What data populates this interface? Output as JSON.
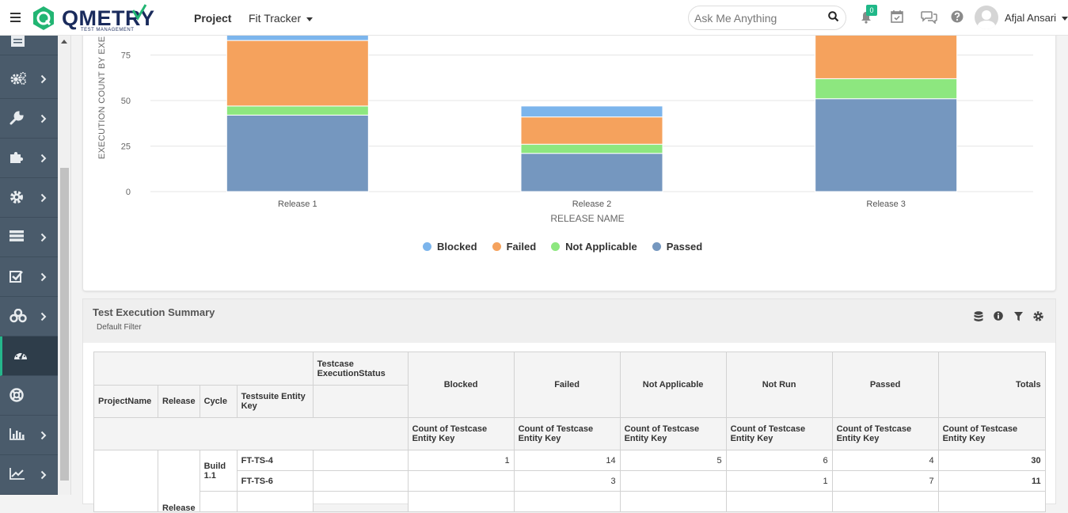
{
  "header": {
    "logo_text": "QMETRY",
    "logo_sub": "TEST MANAGEMENT",
    "nav_project": "Project",
    "nav_tracker": "Fit Tracker",
    "search_placeholder": "Ask Me Anything",
    "notification_count": "0",
    "user_name": "Afjal Ansari"
  },
  "sidebar": {
    "items": [
      {
        "icon": "list-icon"
      },
      {
        "icon": "gears-icon"
      },
      {
        "icon": "wrench-icon"
      },
      {
        "icon": "puzzle-icon"
      },
      {
        "icon": "gear-icon"
      },
      {
        "icon": "server-icon"
      },
      {
        "icon": "checkbox-icon"
      },
      {
        "icon": "cubes-icon"
      },
      {
        "icon": "dashboard-icon"
      },
      {
        "icon": "lifebuoy-icon"
      },
      {
        "icon": "bar-chart-icon"
      },
      {
        "icon": "line-chart-icon"
      }
    ]
  },
  "chart_data": {
    "type": "bar",
    "stacked": true,
    "categories": [
      "Release 1",
      "Release 2",
      "Release 3"
    ],
    "series": [
      {
        "name": "Passed",
        "color": "#7597bf",
        "values": [
          42,
          21,
          51
        ]
      },
      {
        "name": "Not Applicable",
        "color": "#8de77f",
        "values": [
          5,
          5,
          11
        ]
      },
      {
        "name": "Failed",
        "color": "#f5a25d",
        "values": [
          36,
          15,
          30
        ]
      },
      {
        "name": "Blocked",
        "color": "#7cb5ec",
        "values": [
          5,
          6,
          3
        ]
      }
    ],
    "legend_order": [
      "Blocked",
      "Failed",
      "Not Applicable",
      "Passed"
    ],
    "xlabel": "RELEASE NAME",
    "ylabel": "EXECUTION COUNT BY EXECUTION STATUS",
    "y_ticks": [
      0,
      25,
      50,
      75
    ],
    "ylim": [
      0,
      85
    ],
    "grid": true,
    "legend_position": "bottom"
  },
  "summary": {
    "title": "Test Execution Summary",
    "subtitle": "Default Filter",
    "tools": [
      "database-icon",
      "info-icon",
      "filter-icon",
      "settings-icon"
    ],
    "table": {
      "pivot_label": "Testcase ExecutionStatus",
      "row_headers": [
        "ProjectName",
        "Release",
        "Cycle",
        "Testsuite Entity Key"
      ],
      "status_columns": [
        "Blocked",
        "Failed",
        "Not Applicable",
        "Not Run",
        "Passed",
        "Totals"
      ],
      "measure": "Count of Testcase Entity Key",
      "release_label": "Release",
      "cycle_label": "Build 1.1",
      "rows": [
        {
          "suite": "FT-TS-4",
          "values": [
            "1",
            "14",
            "5",
            "6",
            "4"
          ],
          "total": "30"
        },
        {
          "suite": "FT-TS-6",
          "values": [
            "",
            "3",
            "",
            "1",
            "7"
          ],
          "total": "11"
        }
      ]
    }
  }
}
